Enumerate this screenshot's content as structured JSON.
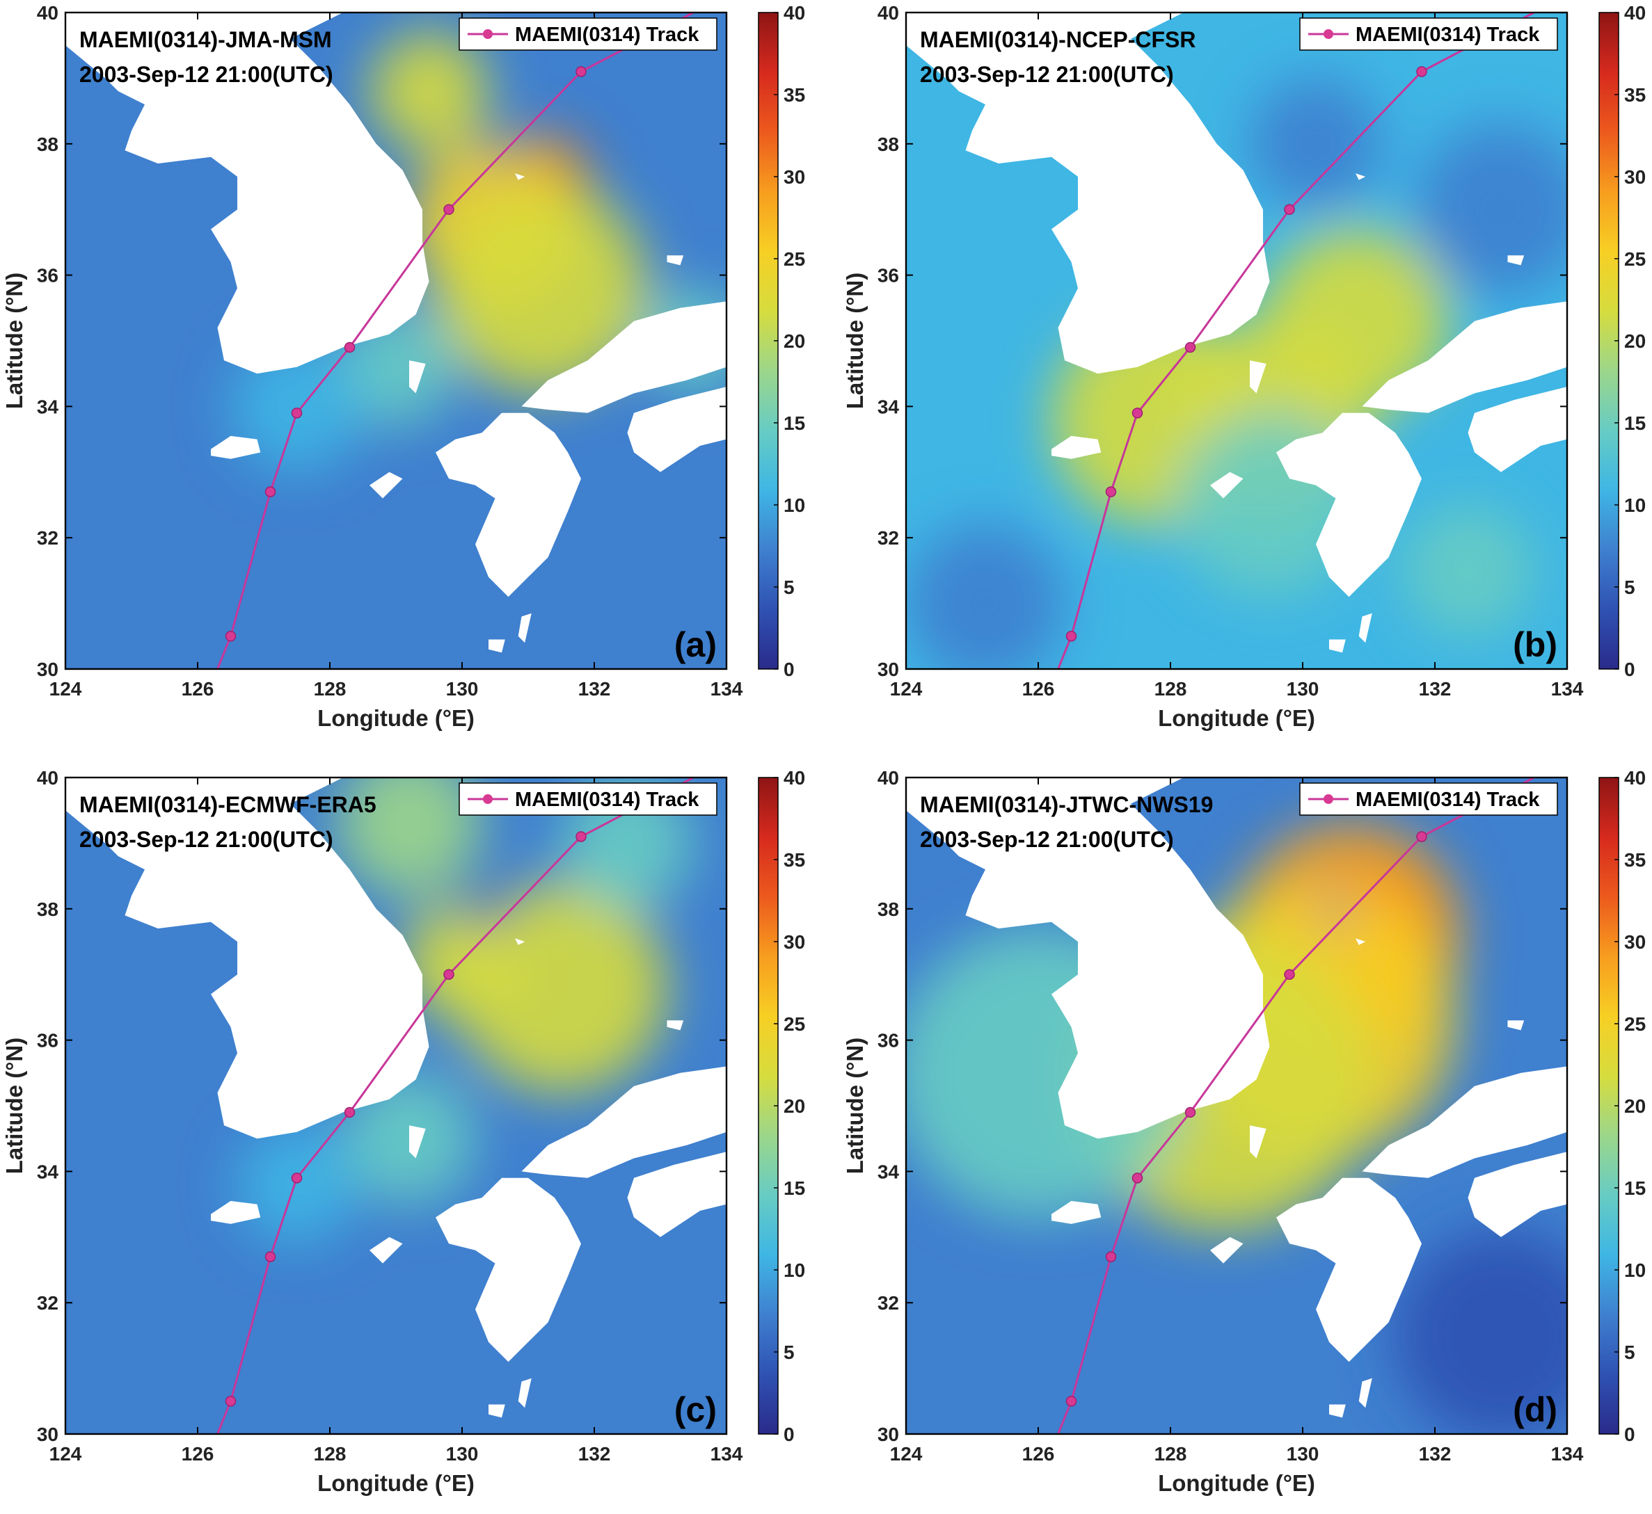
{
  "figure": {
    "legend_label": "MAEMI(0314) Track",
    "xlabel": "Longitude (°E)",
    "ylabel": "Latitude (°N)",
    "timestamp": "2003-Sep-12 21:00(UTC)"
  },
  "colors": {
    "track": "#c8379a",
    "track_marker": "#d83a93",
    "land": "#ffffff",
    "colormap": [
      "#2a2b8a",
      "#2f52b3",
      "#3f80cf",
      "#3fb6e4",
      "#67ccc3",
      "#9cd68a",
      "#d6dc3e",
      "#f7cf24",
      "#f79d1f",
      "#ec5a1d",
      "#d62a1e",
      "#8e1515"
    ]
  },
  "chart_data": [
    {
      "type": "heatmap",
      "panel": "(a)",
      "title": "MAEMI(0314)-JMA-MSM",
      "subtitle": "2003-Sep-12 21:00(UTC)",
      "xlim": [
        124,
        134
      ],
      "ylim": [
        30,
        40
      ],
      "xticks": [
        124,
        126,
        128,
        130,
        132,
        134
      ],
      "yticks": [
        30,
        32,
        34,
        36,
        38,
        40
      ],
      "clim": [
        0,
        40
      ],
      "cticks": [
        0,
        5,
        10,
        15,
        20,
        25,
        30,
        35,
        40
      ],
      "background_value": 9,
      "features": [
        {
          "lon": 131.2,
          "lat": 37.4,
          "value": 32,
          "radius": 0.75
        },
        {
          "lon": 130.5,
          "lat": 36.8,
          "value": 24,
          "radius": 1.3
        },
        {
          "lon": 131.2,
          "lat": 35.8,
          "value": 21,
          "radius": 1.6
        },
        {
          "lon": 129.5,
          "lat": 38.8,
          "value": 20,
          "radius": 0.9
        },
        {
          "lon": 130.6,
          "lat": 37.95,
          "value": 4,
          "radius": 0.22
        },
        {
          "lon": 129.0,
          "lat": 34.6,
          "value": 15,
          "radius": 0.9
        },
        {
          "lon": 127.5,
          "lat": 34.0,
          "value": 11,
          "radius": 1.0
        },
        {
          "lon": 133.5,
          "lat": 35.0,
          "value": 14,
          "radius": 0.8
        }
      ],
      "track": {
        "lon": [
          126.3,
          126.5,
          127.1,
          127.5,
          128.3,
          129.8,
          131.8,
          133.5
        ],
        "lat": [
          30.0,
          30.5,
          32.7,
          33.9,
          34.9,
          37.0,
          39.1,
          40.0
        ],
        "markers": [
          1,
          2,
          3,
          4,
          5,
          6
        ]
      }
    },
    {
      "type": "heatmap",
      "panel": "(b)",
      "title": "MAEMI(0314)-NCEP-CFSR",
      "subtitle": "2003-Sep-12 21:00(UTC)",
      "xlim": [
        124,
        134
      ],
      "ylim": [
        30,
        40
      ],
      "xticks": [
        124,
        126,
        128,
        130,
        132,
        134
      ],
      "yticks": [
        30,
        32,
        34,
        36,
        38,
        40
      ],
      "clim": [
        0,
        40
      ],
      "cticks": [
        0,
        5,
        10,
        15,
        20,
        25,
        30,
        35,
        40
      ],
      "background_value": 10,
      "features": [
        {
          "lon": 127.8,
          "lat": 33.8,
          "value": 21,
          "radius": 1.6
        },
        {
          "lon": 129.5,
          "lat": 33.8,
          "value": 20,
          "radius": 1.5
        },
        {
          "lon": 130.8,
          "lat": 35.3,
          "value": 21,
          "radius": 1.4
        },
        {
          "lon": 129.5,
          "lat": 32.5,
          "value": 15,
          "radius": 1.4
        },
        {
          "lon": 130.2,
          "lat": 38.0,
          "value": 6,
          "radius": 1.0
        },
        {
          "lon": 133.0,
          "lat": 37.0,
          "value": 8,
          "radius": 1.3
        },
        {
          "lon": 125.2,
          "lat": 31.0,
          "value": 7,
          "radius": 1.2
        },
        {
          "lon": 132.5,
          "lat": 31.5,
          "value": 15,
          "radius": 1.0
        }
      ],
      "track": {
        "lon": [
          126.3,
          126.5,
          127.1,
          127.5,
          128.3,
          129.8,
          131.8,
          133.5
        ],
        "lat": [
          30.0,
          30.5,
          32.7,
          33.9,
          34.9,
          37.0,
          39.1,
          40.0
        ],
        "markers": [
          1,
          2,
          3,
          4,
          5,
          6
        ]
      }
    },
    {
      "type": "heatmap",
      "panel": "(c)",
      "title": "MAEMI(0314)-ECMWF-ERA5",
      "subtitle": "2003-Sep-12 21:00(UTC)",
      "xlim": [
        124,
        134
      ],
      "ylim": [
        30,
        40
      ],
      "xticks": [
        124,
        126,
        128,
        130,
        132,
        134
      ],
      "yticks": [
        30,
        32,
        34,
        36,
        38,
        40
      ],
      "clim": [
        0,
        40
      ],
      "cticks": [
        0,
        5,
        10,
        15,
        20,
        25,
        30,
        35,
        40
      ],
      "background_value": 8,
      "features": [
        {
          "lon": 131.5,
          "lat": 36.8,
          "value": 23,
          "radius": 1.6
        },
        {
          "lon": 130.0,
          "lat": 37.2,
          "value": 21,
          "radius": 0.9
        },
        {
          "lon": 129.2,
          "lat": 39.3,
          "value": 17,
          "radius": 1.1
        },
        {
          "lon": 130.4,
          "lat": 38.05,
          "value": 4,
          "radius": 0.35
        },
        {
          "lon": 129.2,
          "lat": 34.5,
          "value": 14,
          "radius": 1.0
        },
        {
          "lon": 132.5,
          "lat": 39.0,
          "value": 15,
          "radius": 1.0
        },
        {
          "lon": 127.5,
          "lat": 33.8,
          "value": 11,
          "radius": 0.9
        }
      ],
      "track": {
        "lon": [
          126.3,
          126.5,
          127.1,
          127.5,
          128.3,
          129.8,
          131.8,
          133.5
        ],
        "lat": [
          30.0,
          30.5,
          32.7,
          33.9,
          34.9,
          37.0,
          39.1,
          40.0
        ],
        "markers": [
          1,
          2,
          3,
          4,
          5,
          6
        ]
      }
    },
    {
      "type": "heatmap",
      "panel": "(d)",
      "title": "MAEMI(0314)-JTWC-NWS19",
      "subtitle": "2003-Sep-12 21:00(UTC)",
      "xlim": [
        124,
        134
      ],
      "ylim": [
        30,
        40
      ],
      "xticks": [
        124,
        126,
        128,
        130,
        132,
        134
      ],
      "yticks": [
        30,
        32,
        34,
        36,
        38,
        40
      ],
      "clim": [
        0,
        40
      ],
      "cticks": [
        0,
        5,
        10,
        15,
        20,
        25,
        30,
        35,
        40
      ],
      "background_value": 8,
      "features": [
        {
          "lon": 130.3,
          "lat": 37.0,
          "value": 35,
          "radius": 0.95
        },
        {
          "lon": 131.3,
          "lat": 38.0,
          "value": 34,
          "radius": 0.8
        },
        {
          "lon": 130.7,
          "lat": 37.6,
          "value": 28,
          "radius": 1.7
        },
        {
          "lon": 130.2,
          "lat": 36.3,
          "value": 26,
          "radius": 2.1
        },
        {
          "lon": 128.8,
          "lat": 35.4,
          "value": 20,
          "radius": 2.3
        },
        {
          "lon": 126.0,
          "lat": 35.5,
          "value": 16,
          "radius": 2.2
        },
        {
          "lon": 130.5,
          "lat": 37.95,
          "value": 4,
          "radius": 0.22
        },
        {
          "lon": 133.0,
          "lat": 31.5,
          "value": 5,
          "radius": 1.6
        }
      ],
      "track": {
        "lon": [
          126.3,
          126.5,
          127.1,
          127.5,
          128.3,
          129.8,
          131.8,
          133.5
        ],
        "lat": [
          30.0,
          30.5,
          32.7,
          33.9,
          34.9,
          37.0,
          39.1,
          40.0
        ],
        "markers": [
          1,
          2,
          3,
          4,
          5,
          6
        ]
      }
    }
  ]
}
